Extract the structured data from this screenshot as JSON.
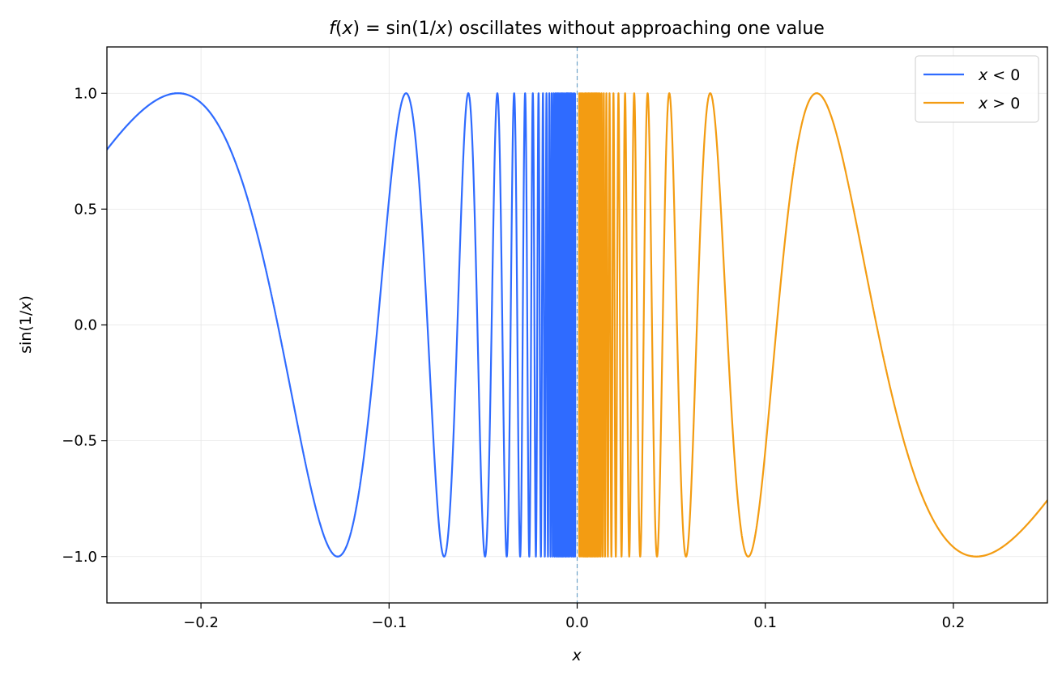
{
  "chart_data": {
    "type": "line",
    "title": {
      "f": "f",
      "open": "(",
      "x": "x",
      "close": ")",
      "eq": " = sin(1/",
      "x2": "x",
      "rest": ") oscillates without approaching one value"
    },
    "xlabel": "x",
    "ylabel": {
      "prefix": "sin(1/",
      "x": "x",
      "suffix": ")"
    },
    "xlim": [
      -0.25,
      0.25
    ],
    "ylim": [
      -1.2,
      1.2
    ],
    "xticks": [
      -0.2,
      -0.1,
      0.0,
      0.1,
      0.2
    ],
    "xtick_labels": [
      "−0.2",
      "−0.1",
      "0.0",
      "0.1",
      "0.2"
    ],
    "yticks": [
      1.0,
      0.5,
      0.0,
      -0.5,
      -1.0
    ],
    "ytick_labels": [
      "1.0",
      "0.5",
      "0.0",
      "−0.5",
      "−1.0"
    ],
    "grid": true,
    "reference_line": {
      "x": 0,
      "style": "dashed",
      "color": "#6fa3c8"
    },
    "legend_position": "top-right",
    "function": "sin(1/x)",
    "series": [
      {
        "name": "x < 0",
        "legend_var": "x",
        "legend_op": " < 0",
        "domain": [
          -0.25,
          -0.001
        ],
        "color": "#2f6bff"
      },
      {
        "name": "x > 0",
        "legend_var": "x",
        "legend_op": " > 0",
        "domain": [
          0.001,
          0.25
        ],
        "color": "#f39c12"
      }
    ]
  }
}
